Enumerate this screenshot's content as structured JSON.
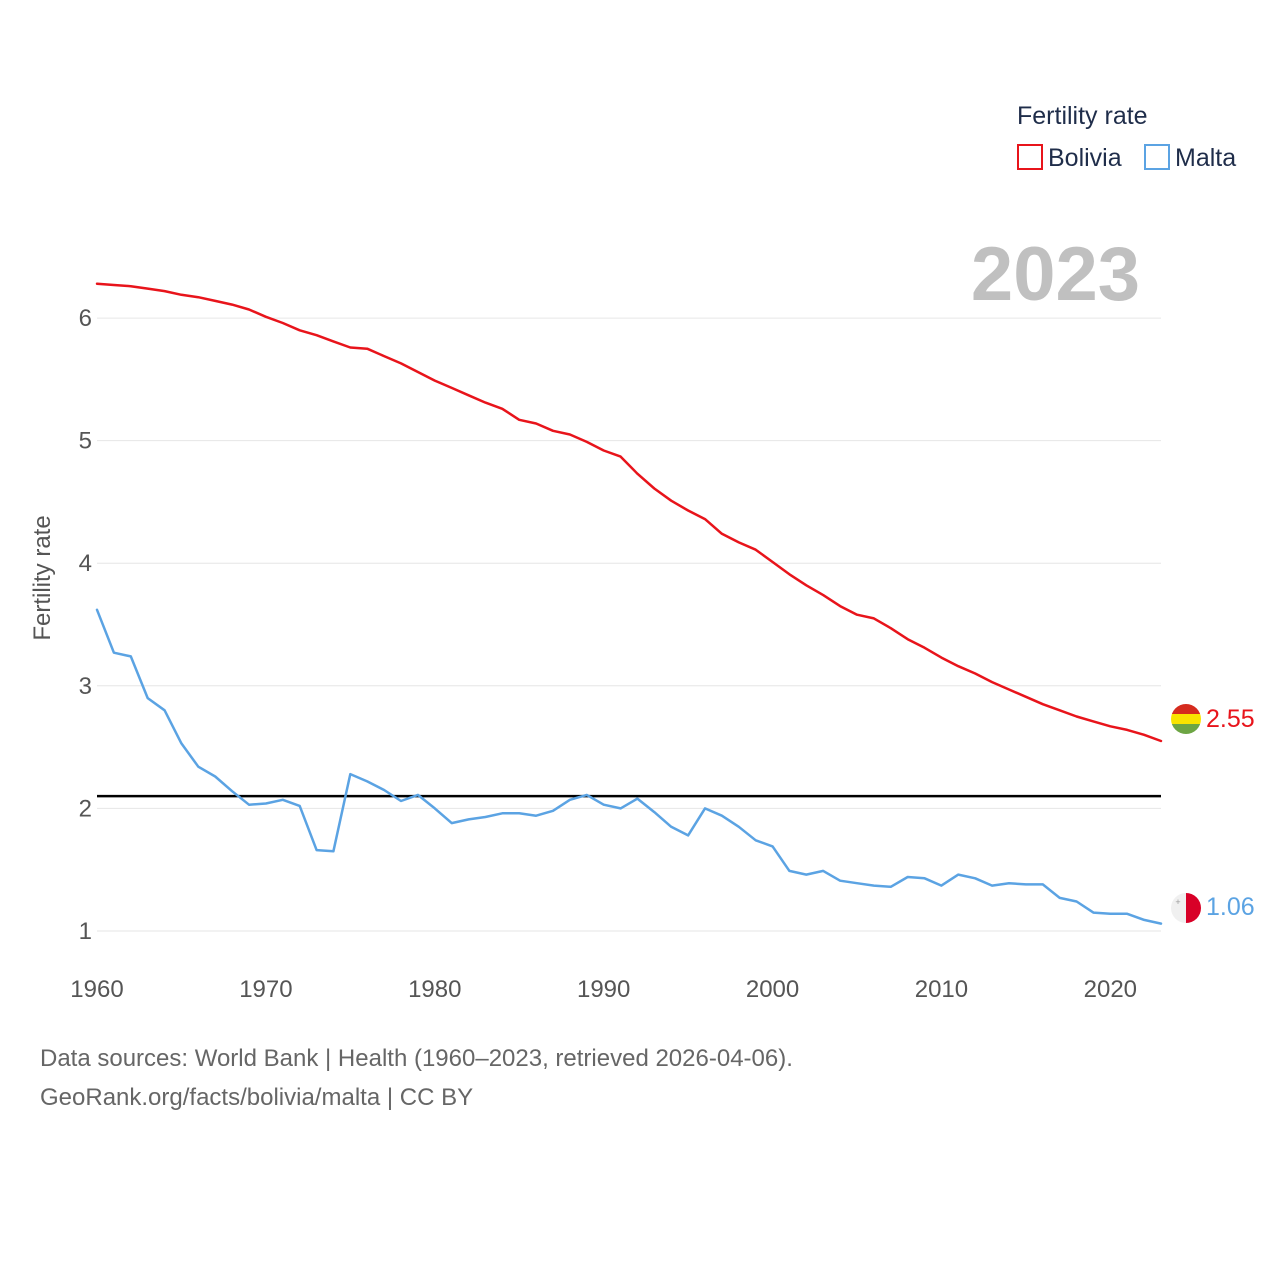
{
  "chart_data": {
    "type": "line",
    "ylabel": "Fertility rate",
    "year_label": "2023",
    "ylim": [
      0.6,
      6.8
    ],
    "xlim": [
      1960,
      2023
    ],
    "y_ticks": [
      "1",
      "2",
      "3",
      "4",
      "5",
      "6"
    ],
    "x_ticks": [
      "1960",
      "1970",
      "1980",
      "1990",
      "2000",
      "2010",
      "2020"
    ],
    "grid": true,
    "reference_line": 2.1,
    "legend": {
      "title": "Fertility rate",
      "position": "top-right",
      "entries": [
        "Bolivia",
        "Malta"
      ]
    },
    "x": [
      1960,
      1961,
      1962,
      1963,
      1964,
      1965,
      1966,
      1967,
      1968,
      1969,
      1970,
      1971,
      1972,
      1973,
      1974,
      1975,
      1976,
      1977,
      1978,
      1979,
      1980,
      1981,
      1982,
      1983,
      1984,
      1985,
      1986,
      1987,
      1988,
      1989,
      1990,
      1991,
      1992,
      1993,
      1994,
      1995,
      1996,
      1997,
      1998,
      1999,
      2000,
      2001,
      2002,
      2003,
      2004,
      2005,
      2006,
      2007,
      2008,
      2009,
      2010,
      2011,
      2012,
      2013,
      2014,
      2015,
      2016,
      2017,
      2018,
      2019,
      2020,
      2021,
      2022,
      2023
    ],
    "series": [
      {
        "name": "Bolivia",
        "color": "#e8141b",
        "end_label": "2.55",
        "values": [
          6.28,
          6.27,
          6.26,
          6.24,
          6.22,
          6.19,
          6.17,
          6.14,
          6.11,
          6.07,
          6.01,
          5.96,
          5.9,
          5.86,
          5.81,
          5.76,
          5.75,
          5.69,
          5.63,
          5.56,
          5.49,
          5.43,
          5.37,
          5.31,
          5.26,
          5.17,
          5.14,
          5.08,
          5.05,
          4.99,
          4.92,
          4.87,
          4.73,
          4.61,
          4.51,
          4.43,
          4.36,
          4.24,
          4.17,
          4.11,
          4.01,
          3.91,
          3.82,
          3.74,
          3.65,
          3.58,
          3.55,
          3.47,
          3.38,
          3.31,
          3.23,
          3.16,
          3.1,
          3.03,
          2.97,
          2.91,
          2.85,
          2.8,
          2.75,
          2.71,
          2.67,
          2.64,
          2.6,
          2.55
        ]
      },
      {
        "name": "Malta",
        "color": "#5ba3e3",
        "end_label": "1.06",
        "values": [
          3.62,
          3.27,
          3.24,
          2.9,
          2.8,
          2.53,
          2.34,
          2.26,
          2.14,
          2.03,
          2.04,
          2.07,
          2.02,
          1.66,
          1.65,
          2.28,
          2.22,
          2.15,
          2.06,
          2.11,
          2.0,
          1.88,
          1.91,
          1.93,
          1.96,
          1.96,
          1.94,
          1.98,
          2.07,
          2.11,
          2.03,
          2.0,
          2.08,
          1.97,
          1.85,
          1.78,
          2.0,
          1.94,
          1.85,
          1.74,
          1.69,
          1.49,
          1.46,
          1.49,
          1.41,
          1.39,
          1.37,
          1.36,
          1.44,
          1.43,
          1.37,
          1.46,
          1.43,
          1.37,
          1.39,
          1.38,
          1.38,
          1.27,
          1.24,
          1.15,
          1.14,
          1.14,
          1.09,
          1.06
        ]
      }
    ]
  },
  "footer": {
    "line1": "Data sources: World Bank | Health (1960–2023, retrieved 2026-04-06).",
    "line2": "GeoRank.org/facts/bolivia/malta | CC BY"
  }
}
